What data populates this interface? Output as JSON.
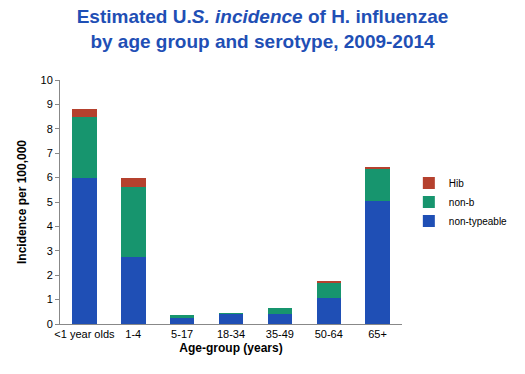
{
  "chart_data": {
    "type": "bar",
    "title": "Estimated U.S. incidence of H. influenzae by age group and serotype, 2009-2014",
    "x_label": "Age-group (years)",
    "y_label": "Incidence per 100,000",
    "categories": [
      "<1 year olds",
      "1-4",
      "5-17",
      "18-34",
      "35-49",
      "50-64",
      "65+"
    ],
    "series": [
      {
        "name": "non-typeable",
        "color": "#1f4fb5",
        "values": [
          6.0,
          2.75,
          0.25,
          0.4,
          0.4,
          1.05,
          5.05
        ]
      },
      {
        "name": "non-b",
        "color": "#17956e",
        "values": [
          2.5,
          2.85,
          0.1,
          0.07,
          0.27,
          0.65,
          1.3
        ]
      },
      {
        "name": "Hib",
        "color": "#b5412e",
        "values": [
          0.3,
          0.4,
          0.0,
          0.0,
          0.0,
          0.05,
          0.07
        ]
      }
    ],
    "stacked": true,
    "ylim": [
      0,
      10
    ],
    "yticks": [
      0,
      1,
      2,
      3,
      4,
      5,
      6,
      7,
      8,
      9,
      10
    ],
    "grid": false,
    "legend": "right"
  }
}
